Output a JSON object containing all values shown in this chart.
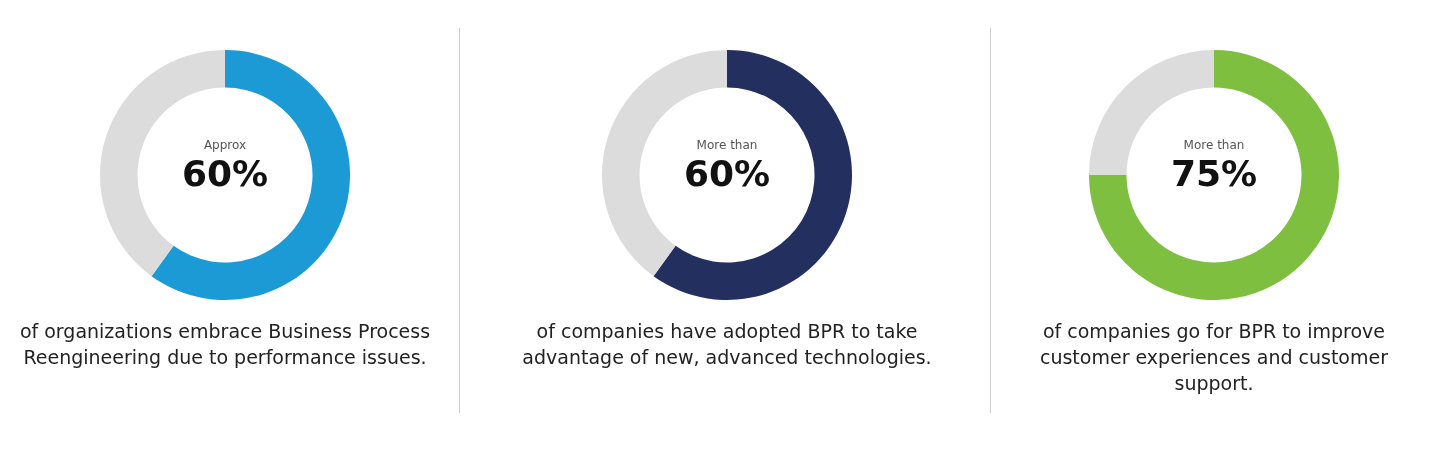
{
  "chart_data": [
    {
      "type": "donut",
      "categories": [
        null,
        null
      ],
      "values": [
        60,
        40
      ],
      "colors": [
        "#1b9ad6",
        "#dcdcdc"
      ],
      "annotations": [
        "Approx",
        "60%"
      ],
      "subtitle": "of organizations embrace Business Process Reengineering due to performance issues."
    },
    {
      "type": "donut",
      "categories": [
        null,
        null
      ],
      "values": [
        60,
        40
      ],
      "colors": [
        "#232f5f",
        "#dcdcdc"
      ],
      "annotations": [
        "More than",
        "60%"
      ],
      "subtitle": "of companies have adopted BPR to take advantage of new, advanced technologies."
    },
    {
      "type": "donut",
      "categories": [
        null,
        null
      ],
      "values": [
        75,
        25
      ],
      "colors": [
        "#7fbf3f",
        "#dcdcdc"
      ],
      "annotations": [
        "More than",
        "75%"
      ],
      "subtitle": "of companies go for BPR to improve customer experiences and customer support."
    }
  ]
}
